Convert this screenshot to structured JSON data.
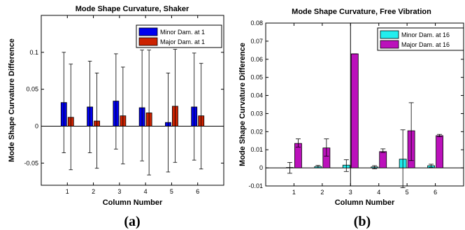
{
  "chart_data": [
    {
      "type": "bar",
      "title": "Mode Shape Curvature, Shaker",
      "xlabel": "Column Number",
      "ylabel": "Mode Shape Curvature Difference",
      "caption": "(a)",
      "categories": [
        "1",
        "2",
        "3",
        "4",
        "5",
        "6"
      ],
      "ylim": [
        -0.08,
        0.15
      ],
      "yticks": [
        -0.05,
        0,
        0.05,
        0.1
      ],
      "ytick_labels": [
        "-0.05",
        "0",
        "0.05",
        "0.1"
      ],
      "legend_position": "top-right",
      "series": [
        {
          "name": "Minor Dam. at 1",
          "color": "#0000ee",
          "values": [
            0.032,
            0.026,
            0.034,
            0.025,
            0.005,
            0.026
          ],
          "err_low": [
            -0.036,
            -0.036,
            -0.031,
            -0.047,
            -0.062,
            -0.046
          ],
          "err_high": [
            0.1,
            0.088,
            0.098,
            0.103,
            0.072,
            0.099
          ]
        },
        {
          "name": "Major Dam. at 1",
          "color": "#cc2200",
          "values": [
            0.012,
            0.007,
            0.014,
            0.018,
            0.027,
            0.014
          ],
          "err_low": [
            -0.059,
            -0.057,
            -0.051,
            -0.066,
            -0.049,
            -0.058
          ],
          "err_high": [
            0.084,
            0.072,
            0.08,
            0.103,
            0.104,
            0.085
          ]
        }
      ]
    },
    {
      "type": "bar",
      "title": "Mode Shape Curvature, Free Vibration",
      "xlabel": "Column Number",
      "ylabel": "Mode Shape Curvature Difference",
      "caption": "(b)",
      "categories": [
        "1",
        "2",
        "3",
        "4",
        "5",
        "6"
      ],
      "ylim": [
        -0.01,
        0.08
      ],
      "yticks": [
        -0.01,
        0,
        0.01,
        0.02,
        0.03,
        0.04,
        0.05,
        0.06,
        0.07,
        0.08
      ],
      "ytick_labels": [
        "-0.01",
        "0",
        "0.01",
        "0.02",
        "0.03",
        "0.04",
        "0.05",
        "0.06",
        "0.07",
        "0.08"
      ],
      "legend_position": "top-right",
      "series": [
        {
          "name": "Minor Dam. at 16",
          "color": "#22eeee",
          "values": [
            0.0002,
            0.0007,
            0.0015,
            0.0005,
            0.0048,
            0.0012
          ],
          "err_low": [
            -0.003,
            0.0,
            -0.002,
            -0.0005,
            -0.011,
            0.0003
          ],
          "err_high": [
            0.003,
            0.0014,
            0.0045,
            0.0012,
            0.021,
            0.002
          ]
        },
        {
          "name": "Major Dam. at 16",
          "color": "#bb11bb",
          "values": [
            0.0135,
            0.011,
            0.063,
            0.009,
            0.0205,
            0.0178
          ],
          "err_low": [
            0.0115,
            0.0065,
            0.063,
            0.0085,
            0.004,
            0.0172
          ],
          "err_high": [
            0.016,
            0.016,
            0.063,
            0.0105,
            0.036,
            0.0185
          ]
        }
      ]
    }
  ]
}
